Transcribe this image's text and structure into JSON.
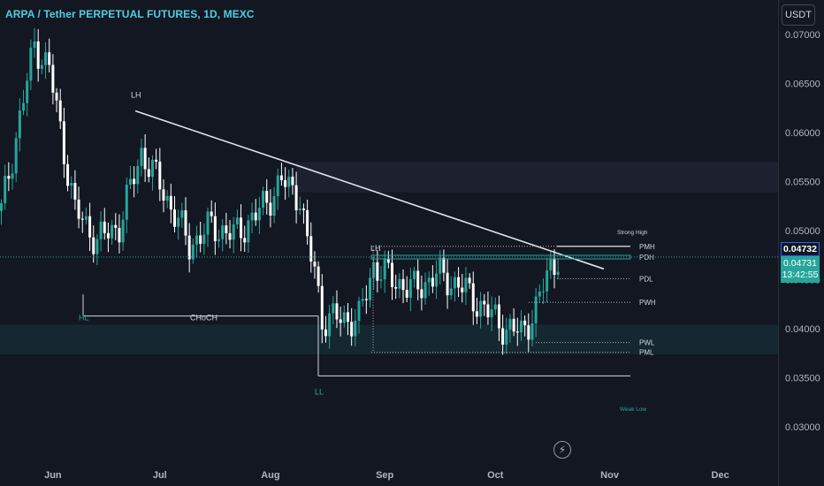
{
  "header": {
    "title": "ARPA / Tether PERPETUAL FUTURES, 1D, MEXC",
    "currency_button": "USDT"
  },
  "colors": {
    "background": "#131722",
    "up": "#26a69a",
    "down": "#ffffff",
    "text": "#d1d4dc",
    "accent": "#2962ff",
    "title": "#4dd0e1"
  },
  "price_axis": {
    "ticks": [
      "0.07000",
      "0.06500",
      "0.06000",
      "0.05500",
      "0.05000",
      "0.04500",
      "0.04000",
      "0.03500",
      "0.03000"
    ],
    "tag_top": "0.04732",
    "tag_current": "0.04731",
    "tag_countdown": "13:42:55"
  },
  "chart_data": {
    "type": "candlestick",
    "title": "ARPA / Tether PERPETUAL FUTURES, 1D, MEXC",
    "x_ticks": [
      "Jun",
      "Jul",
      "Aug",
      "Sep",
      "Oct",
      "Nov",
      "Dec"
    ],
    "y_ticks": [
      0.07,
      0.065,
      0.06,
      0.055,
      0.05,
      0.045,
      0.04,
      0.035,
      0.03
    ],
    "ylim": [
      0.0265,
      0.0735
    ],
    "last_price": 0.04731,
    "segments": [
      [
        0,
        0.0495,
        0.064,
        0.052
      ],
      [
        9,
        0.071,
        0.075,
        0.069
      ],
      [
        13,
        0.0665,
        0.068,
        0.0665
      ],
      [
        20,
        0.0505,
        0.0535,
        0.052
      ],
      [
        26,
        0.0455,
        0.052,
        0.049
      ],
      [
        32,
        0.0485,
        0.053,
        0.0505
      ],
      [
        38,
        0.057,
        0.062,
        0.058
      ],
      [
        44,
        0.052,
        0.055,
        0.054
      ],
      [
        51,
        0.048,
        0.051,
        0.0485
      ],
      [
        57,
        0.049,
        0.052,
        0.0505
      ],
      [
        63,
        0.0465,
        0.0525,
        0.0495
      ],
      [
        69,
        0.05,
        0.0525,
        0.0515
      ],
      [
        76,
        0.0545,
        0.057,
        0.055
      ],
      [
        81,
        0.0525,
        0.054,
        0.0535
      ],
      [
        83,
        0.048,
        0.0495,
        0.0485
      ],
      [
        85,
        0.0455,
        0.047,
        0.046
      ],
      [
        87,
        0.04,
        0.042,
        0.041
      ],
      [
        92,
        0.0405,
        0.0425,
        0.041
      ],
      [
        97,
        0.0395,
        0.0415,
        0.041
      ],
      [
        101,
        0.046,
        0.0475,
        0.0465
      ],
      [
        106,
        0.044,
        0.046,
        0.045
      ],
      [
        112,
        0.0432,
        0.045,
        0.044
      ],
      [
        118,
        0.0445,
        0.0465,
        0.0455
      ],
      [
        124,
        0.0435,
        0.0455,
        0.0445
      ],
      [
        131,
        0.0413,
        0.0428,
        0.042
      ],
      [
        137,
        0.0393,
        0.0405,
        0.04
      ],
      [
        141,
        0.0388,
        0.0408,
        0.0396
      ],
      [
        145,
        0.0415,
        0.043,
        0.042
      ],
      [
        149,
        0.046,
        0.0475,
        0.0465
      ],
      [
        151,
        0.0473,
        0.0478,
        0.0473
      ]
    ],
    "levels": [
      {
        "label": "PMH",
        "value": 0.0484
      },
      {
        "label": "PDH",
        "value": 0.0473
      },
      {
        "label": "PDL",
        "value": 0.0451
      },
      {
        "label": "PWH",
        "value": 0.0427
      },
      {
        "label": "PWL",
        "value": 0.0386
      },
      {
        "label": "PML",
        "value": 0.0376
      }
    ],
    "annotations": [
      {
        "label": "LH",
        "value": 0.0622
      },
      {
        "label": "HL",
        "value": 0.0395
      },
      {
        "label": "CHoCH",
        "value": 0.0395
      },
      {
        "label": "LH",
        "value": 0.049
      },
      {
        "label": "LL",
        "value": 0.0335
      },
      {
        "label": "Strong High",
        "value": 0.0498
      },
      {
        "label": "Weak Low",
        "value": 0.0318
      }
    ],
    "zones": [
      {
        "name": "upper zone",
        "from": 0.0539,
        "to": 0.057
      },
      {
        "name": "lower zone",
        "from": 0.0374,
        "to": 0.0404
      }
    ]
  }
}
